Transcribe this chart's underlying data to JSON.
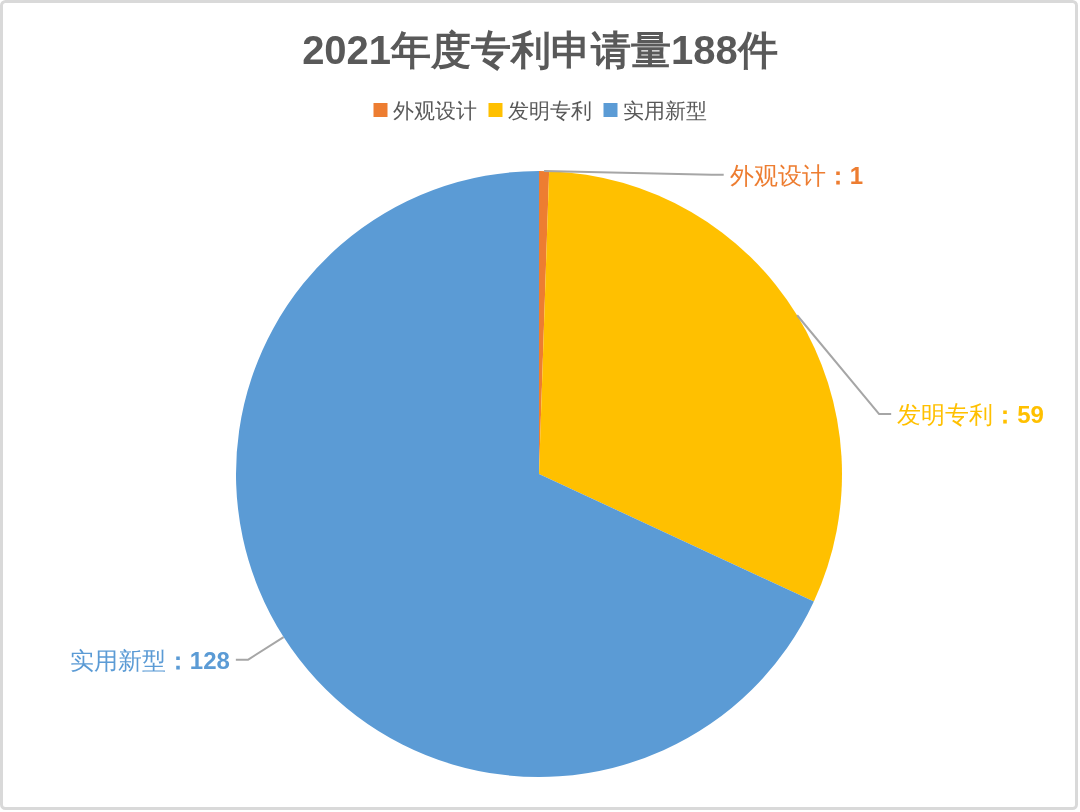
{
  "chart_data": {
    "type": "pie",
    "title": "2021年度专利申请量188件",
    "categories": [
      "外观设计",
      "发明专利",
      "实用新型"
    ],
    "values": [
      1,
      59,
      128
    ],
    "colors": [
      "#ed7d31",
      "#ffc000",
      "#5b9bd5"
    ],
    "legend": "top",
    "value_labels": [
      "外观设计：1",
      "发明专利：59",
      "实用新型：128"
    ]
  }
}
